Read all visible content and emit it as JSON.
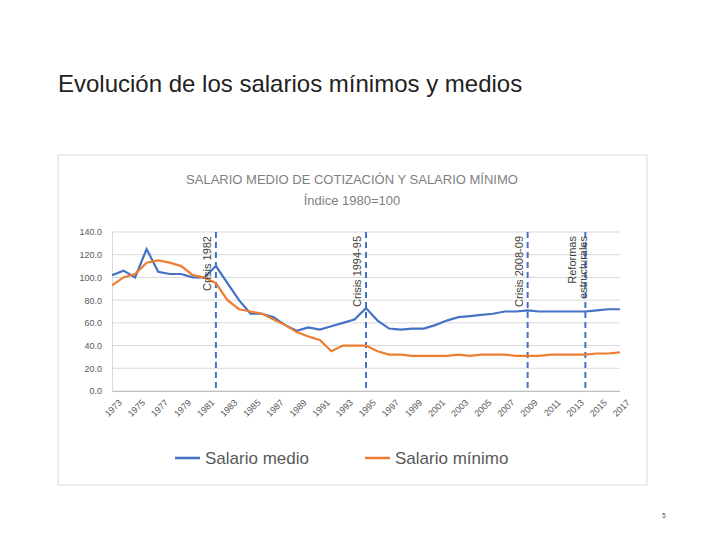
{
  "page_title": "Evolución de los salarios mínimos  y medios",
  "page_number": "5",
  "chart_data": {
    "type": "line",
    "title": "SALARIO MEDIO DE COTIZACIÓN Y SALARIO MÍNIMO",
    "subtitle": "Índice 1980=100",
    "x": [
      1973,
      1974,
      1975,
      1976,
      1977,
      1978,
      1979,
      1980,
      1981,
      1982,
      1983,
      1984,
      1985,
      1986,
      1987,
      1988,
      1989,
      1990,
      1991,
      1992,
      1993,
      1994,
      1995,
      1996,
      1997,
      1998,
      1999,
      2000,
      2001,
      2002,
      2003,
      2004,
      2005,
      2006,
      2007,
      2008,
      2009,
      2010,
      2011,
      2012,
      2013,
      2014,
      2015,
      2016,
      2017
    ],
    "series": [
      {
        "name": "Salario medio",
        "color": "#4472c4",
        "values": [
          102,
          106,
          100,
          125,
          105,
          103,
          103,
          100,
          100,
          110,
          95,
          80,
          68,
          68,
          65,
          58,
          53,
          56,
          54,
          57,
          60,
          63,
          73,
          62,
          55,
          54,
          55,
          55,
          58,
          62,
          65,
          66,
          67,
          68,
          70,
          70,
          71,
          70,
          70,
          70,
          70,
          70,
          71,
          72,
          72
        ]
      },
      {
        "name": "Salario mínimo",
        "color": "#ed7d31",
        "values": [
          93,
          100,
          103,
          113,
          115,
          113,
          110,
          102,
          100,
          95,
          80,
          72,
          70,
          68,
          63,
          58,
          52,
          48,
          45,
          35,
          40,
          40,
          40,
          35,
          32,
          32,
          31,
          31,
          31,
          31,
          32,
          31,
          32,
          32,
          32,
          31,
          31,
          31,
          32,
          32,
          32,
          32,
          33,
          33,
          34
        ]
      }
    ],
    "xlim": [
      1973,
      2017
    ],
    "xticks": [
      1973,
      1975,
      1977,
      1979,
      1981,
      1983,
      1985,
      1987,
      1989,
      1991,
      1993,
      1995,
      1997,
      1999,
      2001,
      2003,
      2005,
      2007,
      2009,
      2011,
      2013,
      2015,
      2017
    ],
    "ylim": [
      0,
      140
    ],
    "yticks": [
      {
        "value": 0,
        "label": "0.0"
      },
      {
        "value": 20,
        "label": "20.0"
      },
      {
        "value": 40,
        "label": "40.0"
      },
      {
        "value": 60,
        "label": "60.0"
      },
      {
        "value": 80,
        "label": "80.0"
      },
      {
        "value": 100,
        "label": "100.0"
      },
      {
        "value": 120,
        "label": "120.0"
      },
      {
        "value": 140,
        "label": "140.0"
      }
    ],
    "grid": true,
    "legend": "bottom",
    "annotations": [
      {
        "label": "Crisis 1982",
        "x": 1982
      },
      {
        "label": "Crisis 1994-95",
        "x": 1995
      },
      {
        "label": "Crisis 2008-09",
        "x": 2009
      },
      {
        "label": "Reformas estructurales",
        "x": 2014
      }
    ]
  }
}
